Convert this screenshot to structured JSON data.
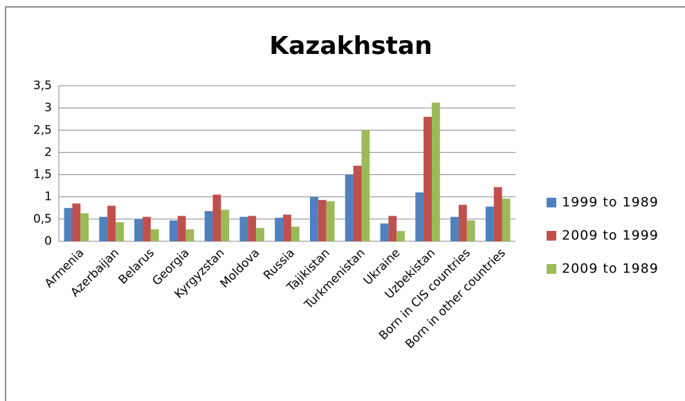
{
  "chart_data": {
    "type": "bar",
    "title": "Kazakhstan",
    "categories": [
      "Armenia",
      "Azerbaijan",
      "Belarus",
      "Georgia",
      "Kyrgyzstan",
      "Moldova",
      "Russia",
      "Tajikistan",
      "Turkmenistan",
      "Ukraine",
      "Uzbekistan",
      "Born in CIS countries",
      "Born in other countries"
    ],
    "series": [
      {
        "name": "1999 to 1989",
        "color": "#4f81bd",
        "values": [
          0.75,
          0.55,
          0.5,
          0.47,
          0.68,
          0.55,
          0.53,
          1.0,
          1.5,
          0.4,
          1.1,
          0.55,
          0.78
        ]
      },
      {
        "name": "2009 to 1999",
        "color": "#c0504d",
        "values": [
          0.85,
          0.8,
          0.55,
          0.57,
          1.05,
          0.57,
          0.6,
          0.93,
          1.7,
          0.57,
          2.8,
          0.82,
          1.22
        ]
      },
      {
        "name": "2009 to 1989",
        "color": "#9bbb59",
        "values": [
          0.63,
          0.43,
          0.27,
          0.27,
          0.71,
          0.3,
          0.33,
          0.9,
          2.5,
          0.23,
          3.12,
          0.47,
          0.96
        ]
      }
    ],
    "ylim": [
      0,
      3.5
    ],
    "yticks": [
      0,
      {
        "value": 0.5,
        "label": "0,5"
      },
      1,
      {
        "value": 1.5,
        "label": "1,5"
      },
      2,
      {
        "value": 2.5,
        "label": "2,5"
      },
      3,
      {
        "value": 3.5,
        "label": "3,5"
      }
    ],
    "grid": true,
    "legend": "right"
  }
}
